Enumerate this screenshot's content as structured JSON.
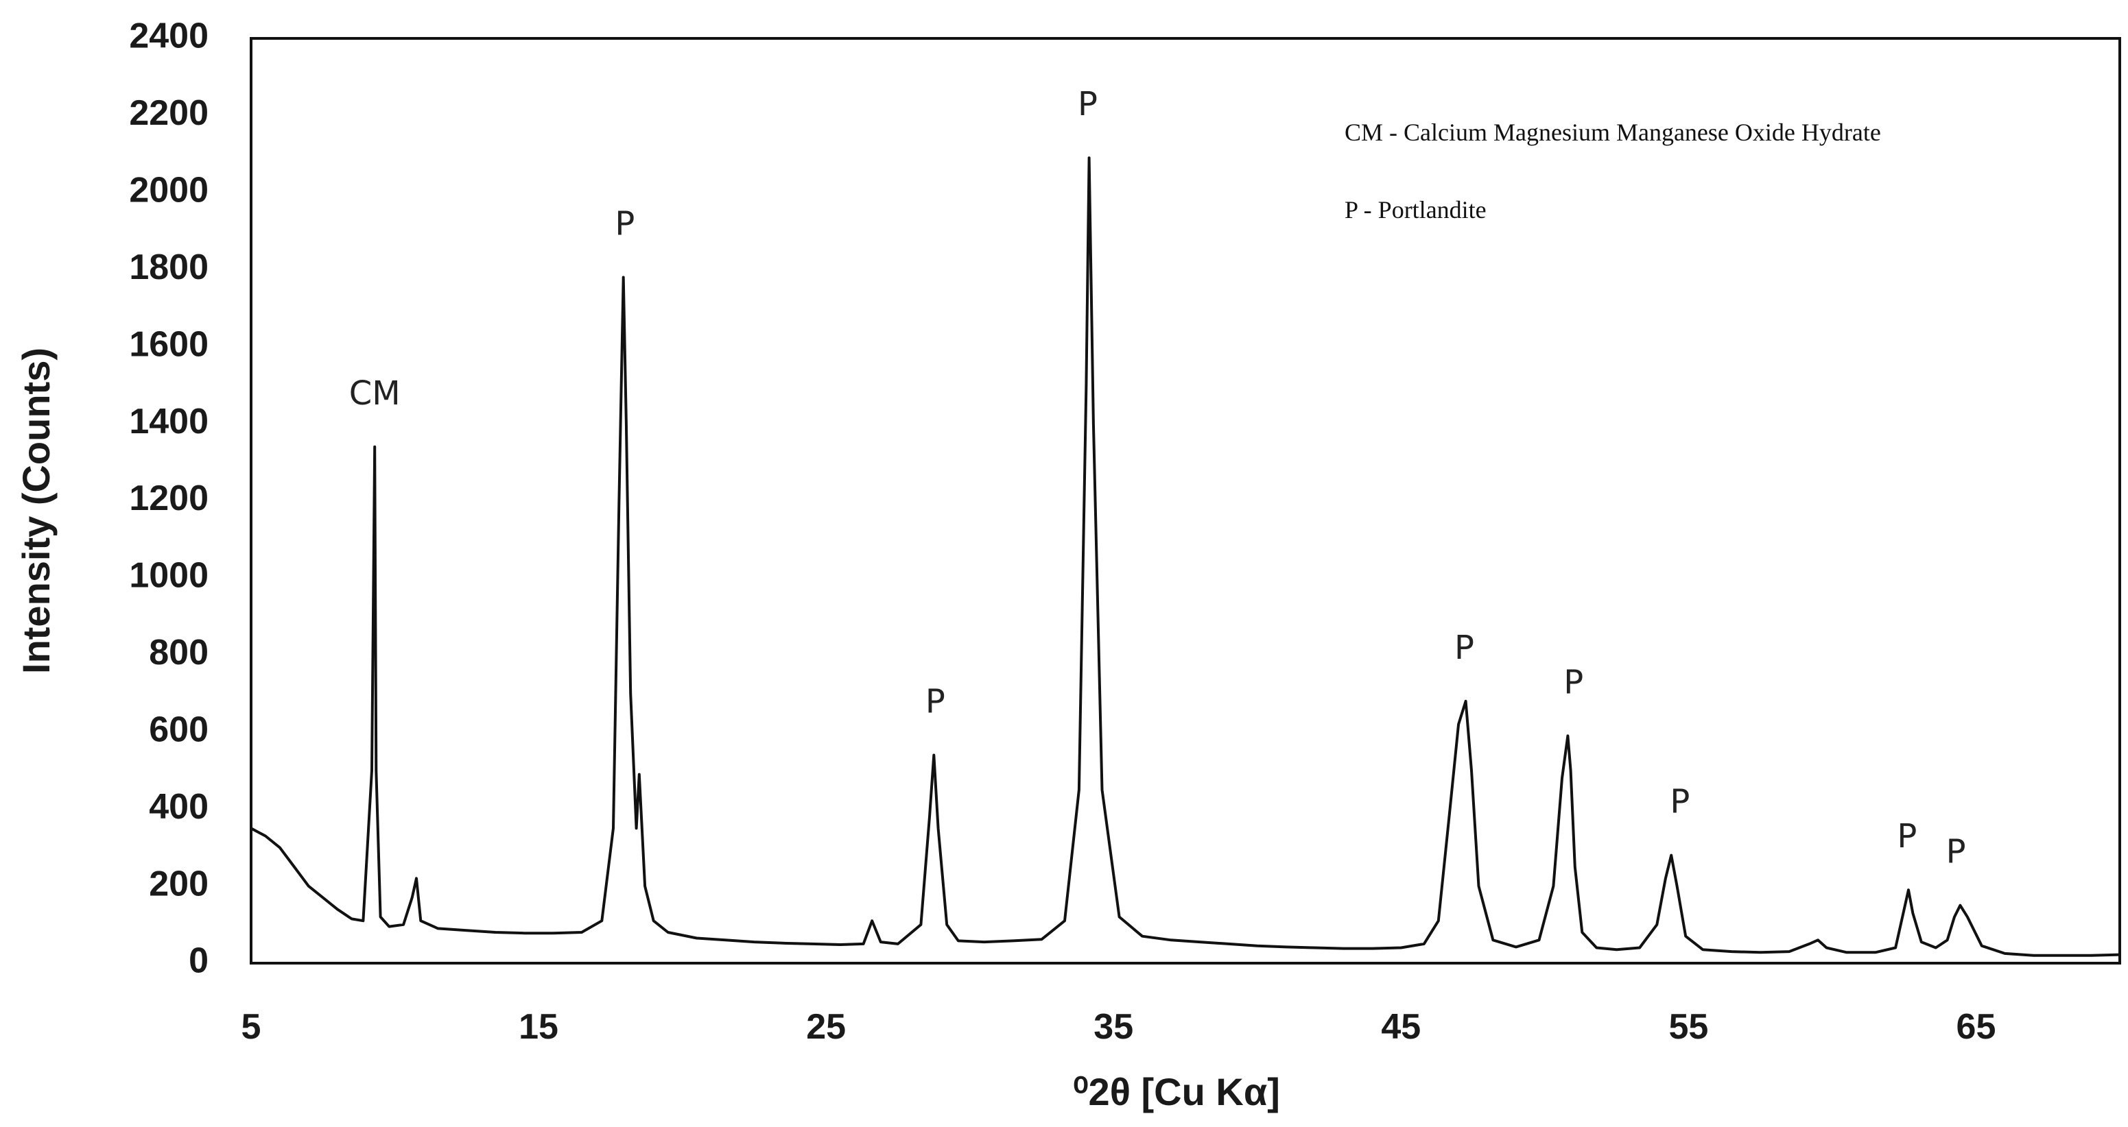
{
  "chart_data": {
    "type": "line",
    "xlabel": "⁰2θ [Cu Kα]",
    "ylabel": "Intensity (Counts)",
    "xlim": [
      5,
      70
    ],
    "ylim": [
      0,
      2400
    ],
    "x_ticks": [
      5,
      15,
      25,
      35,
      45,
      55,
      65
    ],
    "y_ticks": [
      0,
      200,
      400,
      600,
      800,
      1000,
      1200,
      1400,
      1600,
      1800,
      2000,
      2200,
      2400
    ],
    "grid": false,
    "legend_position": "top-right",
    "colors": {
      "line": "#111111",
      "axis": "#111111"
    },
    "legend": [
      "CM - Calcium Magnesium Manganese Oxide Hydrate",
      "P - Portlandite"
    ],
    "series": [
      {
        "x": [
          5.0,
          5.5,
          6.0,
          6.5,
          7.0,
          7.5,
          8.0,
          8.5,
          8.9,
          9.2,
          9.3,
          9.35,
          9.5,
          9.8,
          10.3,
          10.6,
          10.75,
          10.9,
          11.5,
          12.5,
          13.5,
          14.5,
          15.5,
          16.5,
          17.2,
          17.6,
          17.8,
          17.95,
          18.05,
          18.2,
          18.4,
          18.5,
          18.7,
          19.0,
          19.5,
          20.5,
          21.5,
          22.5,
          23.5,
          24.5,
          25.5,
          26.3,
          26.6,
          26.9,
          27.5,
          28.3,
          28.6,
          28.75,
          28.9,
          29.2,
          29.6,
          30.5,
          31.5,
          32.5,
          33.3,
          33.8,
          34.05,
          34.15,
          34.3,
          34.6,
          35.2,
          36.0,
          37.0,
          38.0,
          39.0,
          40.0,
          41.0,
          42.0,
          43.0,
          44.0,
          45.0,
          45.8,
          46.3,
          46.7,
          47.0,
          47.25,
          47.45,
          47.7,
          48.2,
          49.0,
          49.8,
          50.3,
          50.6,
          50.8,
          50.9,
          51.05,
          51.3,
          51.8,
          52.5,
          53.3,
          53.9,
          54.2,
          54.4,
          54.6,
          54.9,
          55.5,
          56.5,
          57.5,
          58.5,
          59.2,
          59.5,
          59.8,
          60.5,
          61.5,
          62.2,
          62.5,
          62.65,
          62.8,
          63.1,
          63.6,
          64.0,
          64.25,
          64.45,
          64.7,
          65.2,
          66.0,
          67.0,
          68.0,
          69.0,
          70.0
        ],
        "y": [
          350,
          330,
          300,
          250,
          200,
          170,
          140,
          115,
          110,
          500,
          1340,
          500,
          120,
          95,
          100,
          170,
          220,
          110,
          90,
          85,
          80,
          78,
          78,
          80,
          110,
          350,
          1200,
          1780,
          1400,
          700,
          350,
          490,
          200,
          110,
          80,
          65,
          60,
          55,
          52,
          50,
          48,
          50,
          110,
          55,
          50,
          100,
          380,
          540,
          350,
          100,
          58,
          55,
          58,
          62,
          110,
          450,
          1500,
          2090,
          1400,
          450,
          120,
          70,
          60,
          55,
          50,
          45,
          42,
          40,
          38,
          38,
          40,
          50,
          110,
          400,
          620,
          680,
          500,
          200,
          60,
          42,
          60,
          200,
          480,
          590,
          500,
          250,
          80,
          40,
          35,
          40,
          100,
          220,
          280,
          200,
          70,
          35,
          30,
          28,
          30,
          50,
          60,
          40,
          28,
          28,
          40,
          140,
          190,
          130,
          55,
          40,
          60,
          120,
          150,
          120,
          45,
          25,
          20,
          20,
          20,
          22
        ]
      }
    ],
    "annotations": [
      {
        "text": "CM",
        "x": 9.3,
        "y": 1340
      },
      {
        "text": "P",
        "x": 18.0,
        "y": 1780
      },
      {
        "text": "P",
        "x": 28.8,
        "y": 540
      },
      {
        "text": "P",
        "x": 34.1,
        "y": 2090
      },
      {
        "text": "P",
        "x": 47.2,
        "y": 680
      },
      {
        "text": "P",
        "x": 51.0,
        "y": 590
      },
      {
        "text": "P",
        "x": 54.7,
        "y": 280
      },
      {
        "text": "P",
        "x": 62.6,
        "y": 190
      },
      {
        "text": "P",
        "x": 64.3,
        "y": 150
      }
    ]
  }
}
